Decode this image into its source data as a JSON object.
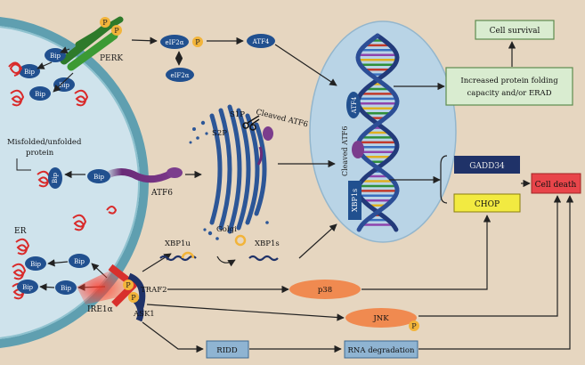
{
  "colors": {
    "background": "#e6d6c0",
    "er_fill": "#cfe3ec",
    "er_border": "#5f9fb0",
    "protein_blue": "#21508f",
    "nucleus_fill": "#b9d4e6",
    "green_box": "#d9ecd0",
    "green_border": "#5d8c4e",
    "red_box": "#e8454a",
    "yellow_box": "#f2ea41",
    "navy_box": "#1f3268",
    "orange_ellipse": "#f08a50",
    "misfolded_red": "#d92a2a",
    "arrow": "#222222"
  },
  "labels": {
    "perk": "PERK",
    "p": "P",
    "bip": "Bip",
    "eif2a_p": "eIF2α",
    "eif2a": "eIF2α",
    "atf4": "ATF4",
    "atf4_nucleus": "ATF4",
    "cell_survival": "Cell survival",
    "increased_folding": [
      "Increased protein folding",
      "capacity and/or ERAD"
    ],
    "s1p": "S1P",
    "s2p": "S2P",
    "cleaved_atf6_golgi": "Cleaved ATF6",
    "cleaved_atf6_nucleus": "Cleaved ATF6",
    "misfolded": [
      "Misfolded/unfolded",
      "protein"
    ],
    "atf6": "ATF6",
    "golgi": "Golgi",
    "xbp1s_nucleus": "XBP1s",
    "gadd34": "GADD34",
    "chop": "CHOP",
    "cell_death": "Cell death",
    "er": "ER",
    "xbp1u": "XBP1u",
    "xbp1s": "XBP1s",
    "traf2": "TRAF2",
    "ask1": "ASK1",
    "ire1a": "IRE1α",
    "p38": "p38",
    "jnk": "JNK",
    "ridd": "RIDD",
    "rna_degradation": "RNA degradation"
  }
}
